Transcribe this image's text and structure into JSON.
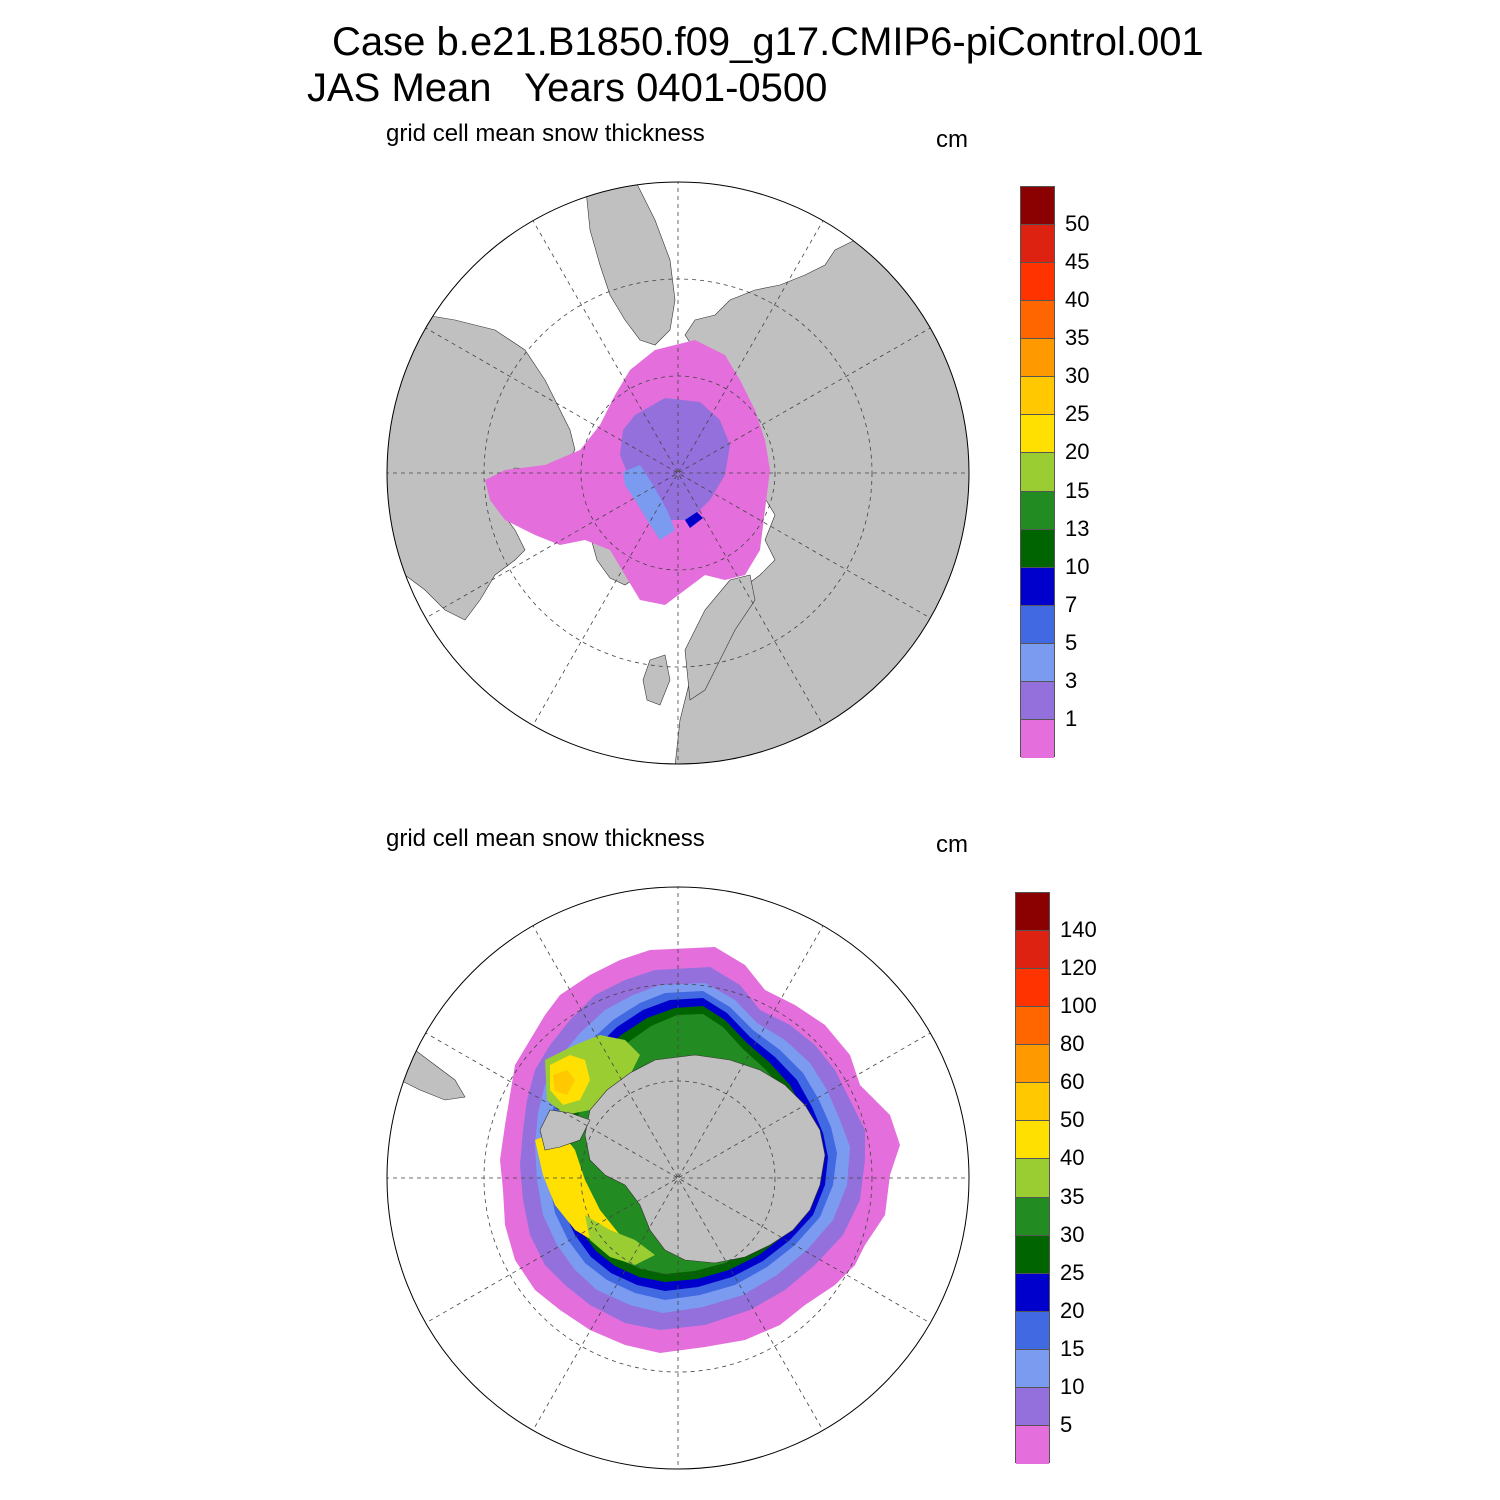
{
  "title": {
    "line1": "Case b.e21.B1850.f09_g17.CMIP6-piControl.001",
    "line2": "JAS Mean   Years 0401-0500"
  },
  "colors": {
    "land": "#c0c0c0",
    "ocean": "#ffffff",
    "grid": "#444444"
  },
  "panels": [
    {
      "id": "north",
      "hemisphere": "Northern",
      "subtitle": "grid cell mean snow thickness",
      "unit": "cm",
      "colorbar": {
        "colors": [
          "#e46fdc",
          "#9370db",
          "#7b9bf0",
          "#4169e1",
          "#0000cd",
          "#006400",
          "#228b22",
          "#9acd32",
          "#ffe000",
          "#ffc800",
          "#ff9900",
          "#ff6600",
          "#ff3300",
          "#dd2211",
          "#8b0000"
        ],
        "labels": [
          "1",
          "3",
          "5",
          "7",
          "10",
          "13",
          "15",
          "20",
          "25",
          "30",
          "35",
          "40",
          "45",
          "50"
        ]
      }
    },
    {
      "id": "south",
      "hemisphere": "Southern",
      "subtitle": "grid cell mean snow thickness",
      "unit": "cm",
      "colorbar": {
        "colors": [
          "#e46fdc",
          "#9370db",
          "#7b9bf0",
          "#4169e1",
          "#0000cd",
          "#006400",
          "#228b22",
          "#9acd32",
          "#ffe000",
          "#ffc800",
          "#ff9900",
          "#ff6600",
          "#ff3300",
          "#dd2211",
          "#8b0000"
        ],
        "labels": [
          "5",
          "10",
          "15",
          "20",
          "25",
          "30",
          "35",
          "40",
          "50",
          "60",
          "80",
          "100",
          "120",
          "140"
        ]
      }
    }
  ]
}
